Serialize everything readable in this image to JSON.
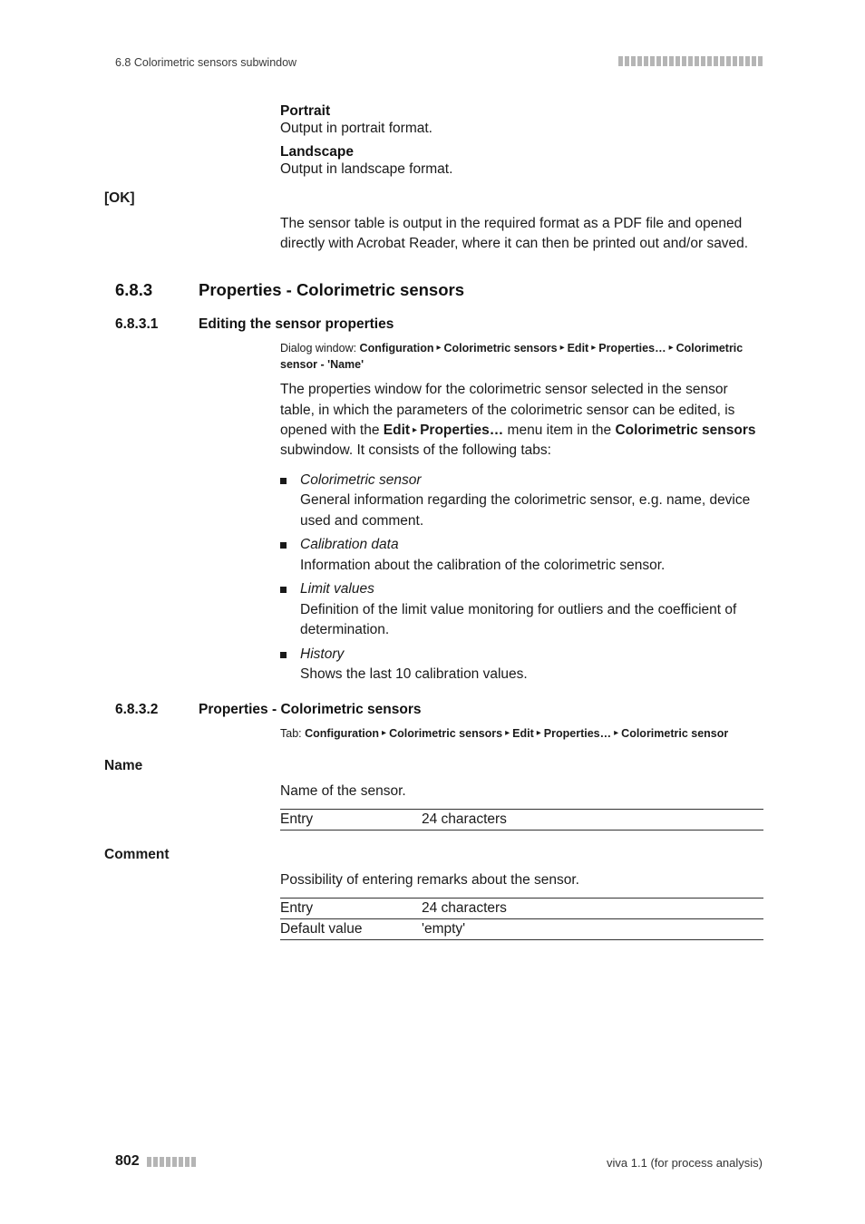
{
  "header": {
    "section_label": "6.8 Colorimetric sensors subwindow"
  },
  "orientation": {
    "portrait_term": "Portrait",
    "portrait_desc": "Output in portrait format.",
    "landscape_term": "Landscape",
    "landscape_desc": "Output in landscape format."
  },
  "ok": {
    "label": "[OK]",
    "text": "The sensor table is output in the required format as a PDF file and opened directly with Acrobat Reader, where it can then be printed out and/or saved."
  },
  "sec683": {
    "num": "6.8.3",
    "title": "Properties - Colorimetric sensors"
  },
  "sec6831": {
    "num": "6.8.3.1",
    "title": "Editing the sensor properties",
    "crumb_prefix": "Dialog window: ",
    "crumb_parts": [
      "Configuration",
      "Colorimetric sensors",
      "Edit",
      "Properties…",
      "Colorimetric sensor - 'Name'"
    ],
    "para_before": "The properties window for the colorimetric sensor selected in the sensor table, in which the parameters of the colorimetric sensor can be edited, is opened with the ",
    "menu_edit": "Edit",
    "menu_props": "Properties…",
    "para_mid": " menu item in the ",
    "bold_sensors": "Colorimetric sensors",
    "para_after": " subwindow. It consists of the following tabs:",
    "bullets": [
      {
        "title": "Colorimetric sensor",
        "desc": "General information regarding the colorimetric sensor, e.g. name, device used and comment."
      },
      {
        "title": "Calibration data",
        "desc": "Information about the calibration of the colorimetric sensor."
      },
      {
        "title": "Limit values",
        "desc": "Definition of the limit value monitoring for outliers and the coefficient of determination."
      },
      {
        "title": "History",
        "desc": "Shows the last 10 calibration values."
      }
    ]
  },
  "sec6832": {
    "num": "6.8.3.2",
    "title": "Properties - Colorimetric sensors",
    "crumb_prefix": "Tab: ",
    "crumb_parts": [
      "Configuration",
      "Colorimetric sensors",
      "Edit",
      "Properties…",
      "Colorimetric sensor"
    ]
  },
  "name_field": {
    "label": "Name",
    "desc": "Name of the sensor.",
    "rows": [
      {
        "k": "Entry",
        "v": "24 characters",
        "bold": true
      }
    ]
  },
  "comment_field": {
    "label": "Comment",
    "desc": "Possibility of entering remarks about the sensor.",
    "rows": [
      {
        "k": "Entry",
        "v": "24 characters",
        "bold": true
      },
      {
        "k": "Default value",
        "v": "'empty'",
        "bold": true
      }
    ]
  },
  "footer": {
    "page": "802",
    "doc": "viva 1.1 (for process analysis)"
  },
  "style": {
    "header_bar_count": 23,
    "footer_bar_count": 8
  }
}
